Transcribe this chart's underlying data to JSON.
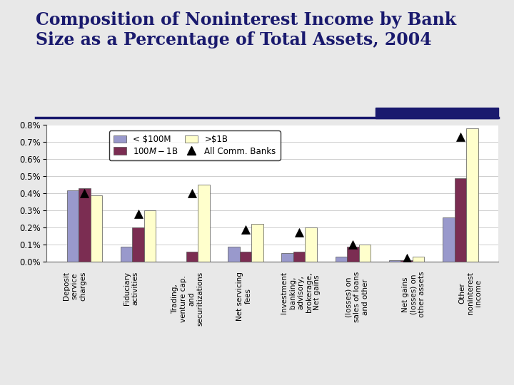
{
  "title": "Composition of Noninterest Income by Bank\nSize as a Percentage of Total Assets, 2004",
  "title_color": "#1a1a6e",
  "title_fontsize": 17,
  "background_color": "#e8e8e8",
  "plot_bg_color": "#ffffff",
  "categories": [
    "Deposit\nservice\ncharges",
    "Fiduciary\nactivities",
    "Trading,\nventure cap.\nand\nsecuritizations",
    "Net servicing\nfees",
    "Investment\nbanking,\nadvisory,\nbrokerage,\nNet gains",
    "(losses) on\nsales of loans\nand other",
    "Net gains\n(losses) on\nother assets",
    "Other\nnoninterest\nincome"
  ],
  "series_lt100m": [
    0.0042,
    0.0009,
    0.0,
    0.0009,
    0.0005,
    0.0003,
    0.0001,
    0.0026
  ],
  "series_100m_1b": [
    0.0043,
    0.002,
    0.0006,
    0.0006,
    0.0006,
    0.0009,
    0.0001,
    0.0049
  ],
  "series_gt1b": [
    0.0039,
    0.003,
    0.0045,
    0.0022,
    0.002,
    0.001,
    0.0003,
    0.0078
  ],
  "series_all_banks": [
    0.004,
    0.0028,
    0.004,
    0.0019,
    0.0017,
    0.001,
    0.0002,
    0.0073
  ],
  "color_lt100m": "#9999cc",
  "color_100m_1b": "#7b2d52",
  "color_gt1b": "#ffffcc",
  "color_all_banks": "#000000",
  "ylim": [
    0.0,
    0.008
  ],
  "yticks": [
    0.0,
    0.001,
    0.002,
    0.003,
    0.004,
    0.005,
    0.006,
    0.007,
    0.008
  ],
  "ytick_labels": [
    "0.0%",
    "0.1%",
    "0.2%",
    "0.3%",
    "0.4%",
    "0.5%",
    "0.6%",
    "0.7%",
    "0.8%"
  ],
  "legend_labels": [
    "< $100M",
    "$100M-$1B",
    ">$1B",
    "All Comm. Banks"
  ],
  "bar_width": 0.22,
  "grid_color": "#bbbbbb",
  "accent_line_color": "#1a1a6e",
  "accent_rect_color": "#1a1a6e"
}
